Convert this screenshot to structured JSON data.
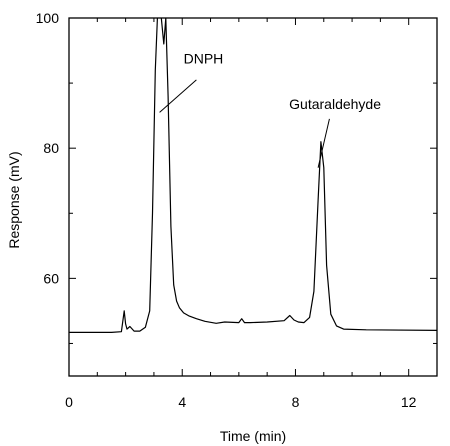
{
  "chart_data": {
    "type": "line",
    "title": "",
    "xlabel": "Time (min)",
    "ylabel": "Response (mV)",
    "xlim": [
      0,
      13
    ],
    "ylim": [
      45,
      100
    ],
    "x_ticks": [
      0,
      4,
      8,
      12
    ],
    "y_ticks": [
      60,
      80,
      100
    ],
    "grid": false,
    "series": [
      {
        "x": [
          0,
          1.5,
          1.85,
          1.95,
          2.0,
          2.05,
          2.15,
          2.3,
          2.5,
          2.7,
          2.85,
          2.95,
          3.05,
          3.15,
          3.25,
          3.35,
          3.42,
          3.5,
          3.6,
          3.7,
          3.8,
          3.9,
          4.05,
          4.25,
          4.5,
          4.8,
          5.2,
          5.5,
          6.0,
          6.1,
          6.2,
          6.4,
          7.0,
          7.6,
          7.8,
          7.95,
          8.1,
          8.3,
          8.5,
          8.65,
          8.8,
          8.9,
          9.0,
          9.1,
          9.25,
          9.45,
          9.7,
          10.5,
          13
        ],
        "y": [
          51.7,
          51.7,
          51.8,
          55.0,
          53.0,
          52.2,
          52.6,
          51.9,
          51.9,
          52.5,
          55.0,
          70.0,
          92.0,
          103.0,
          100.5,
          96.0,
          100.0,
          88.0,
          68.0,
          59.0,
          56.5,
          55.5,
          54.7,
          54.2,
          53.8,
          53.4,
          53.1,
          53.3,
          53.2,
          53.8,
          53.2,
          53.2,
          53.3,
          53.5,
          54.3,
          53.6,
          53.3,
          53.2,
          54.0,
          58.0,
          72.0,
          81.0,
          77.0,
          62.0,
          54.5,
          52.7,
          52.2,
          52.1,
          52.0
        ]
      }
    ],
    "annotations": [
      {
        "text": "DNPH",
        "x": 4.75,
        "y": 93.0
      },
      {
        "text": "Gutaraldehyde",
        "x": 9.4,
        "y": 86.0
      }
    ]
  }
}
